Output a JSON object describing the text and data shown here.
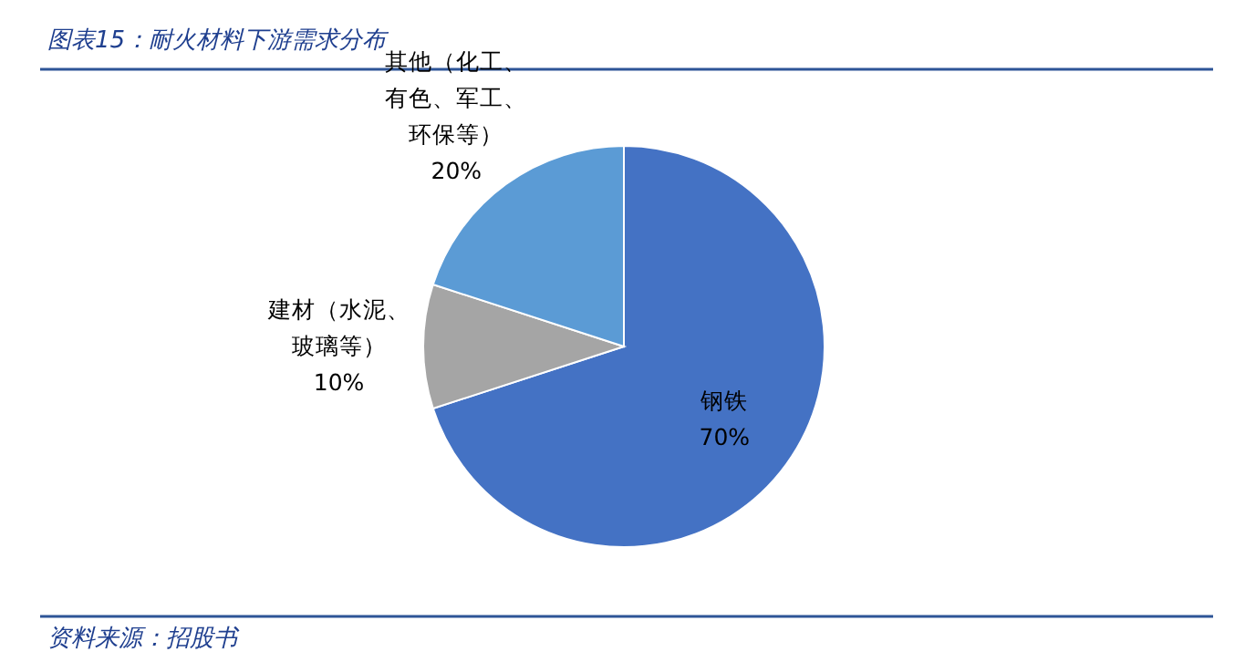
{
  "chart_data": {
    "type": "pie",
    "title": "图表15：耐火材料下游需求分布",
    "categories": [
      "钢铁",
      "建材（水泥、玻璃等）",
      "其他（化工、有色、军工、环保等）"
    ],
    "values": [
      70,
      10,
      20
    ],
    "colors": [
      "#4472c4",
      "#a5a5a5",
      "#5b9bd5"
    ],
    "value_labels": [
      "70%",
      "10%",
      "20%"
    ],
    "annotations": [
      "资料来源：招股书"
    ]
  }
}
